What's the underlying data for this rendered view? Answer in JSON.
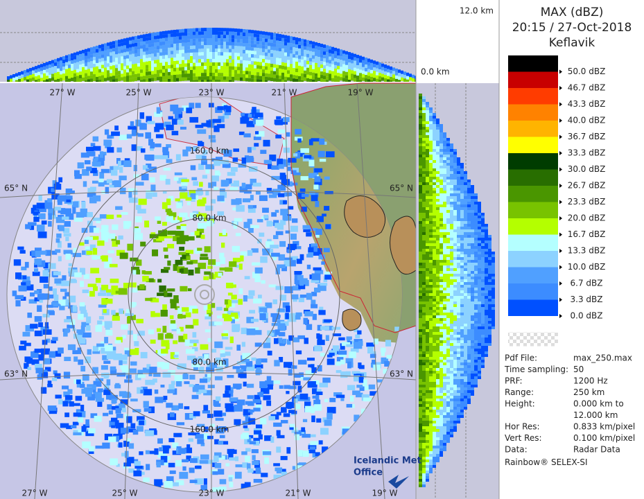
{
  "height_panel": {
    "top_label": "12.0 km",
    "bottom_label": "0.0 km"
  },
  "header": {
    "title": "MAX (dBZ)",
    "time": "20:15 / 27-Oct-2018",
    "site": "Keflavik"
  },
  "legend": {
    "items": [
      {
        "label": "50.0 dBZ",
        "color": "#000000"
      },
      {
        "label": "46.7 dBZ",
        "color": "#c80000"
      },
      {
        "label": "43.3 dBZ",
        "color": "#ff3c00"
      },
      {
        "label": "40.0 dBZ",
        "color": "#ff8200"
      },
      {
        "label": "36.7 dBZ",
        "color": "#ffb400"
      },
      {
        "label": "33.3 dBZ",
        "color": "#ffff00"
      },
      {
        "label": "30.0 dBZ",
        "color": "#003c00"
      },
      {
        "label": "26.7 dBZ",
        "color": "#286e00"
      },
      {
        "label": "23.3 dBZ",
        "color": "#4a9600"
      },
      {
        "label": "20.0 dBZ",
        "color": "#78c300"
      },
      {
        "label": "16.7 dBZ",
        "color": "#b4ff00"
      },
      {
        "label": "13.3 dBZ",
        "color": "#b4ffff"
      },
      {
        "label": "10.0 dBZ",
        "color": "#8cd2ff"
      },
      {
        "label": "6.7 dBZ",
        "color": "#50a0ff"
      },
      {
        "label": "3.3 dBZ",
        "color": "#3c8cff"
      },
      {
        "label": "0.0 dBZ",
        "color": "#0050ff"
      }
    ],
    "below_color": "#ffffff"
  },
  "info": {
    "rows": [
      {
        "label": "Pdf File:",
        "lines": [
          "max_250.max"
        ]
      },
      {
        "label": "Time sampling:",
        "lines": [
          "50"
        ]
      },
      {
        "label": "PRF:",
        "lines": [
          "1200 Hz"
        ]
      },
      {
        "label": "Range:",
        "lines": [
          "250 km"
        ]
      },
      {
        "label": "Height:",
        "lines": [
          "0.000 km to",
          "12.000 km"
        ]
      },
      {
        "label": "Hor Res:",
        "lines": [
          "0.833 km/pixel"
        ]
      },
      {
        "label": "Vert Res:",
        "lines": [
          "0.100 km/pixel"
        ]
      },
      {
        "label": "Data:",
        "lines": [
          "Radar Data"
        ]
      }
    ],
    "footer": "Rainbow® SELEX-SI"
  },
  "map": {
    "lon_top": [
      "27° W",
      "25° W",
      "23° W",
      "21° W",
      "19° W"
    ],
    "lon_bottom": [
      "27° W",
      "25° W",
      "23° W",
      "21° W",
      "19° W"
    ],
    "lat_left": [
      "65° N",
      "63° N"
    ],
    "lat_right": [
      "65° N",
      "63° N"
    ],
    "rings": [
      "80.0 km",
      "80.0 km",
      "160.0 km",
      "160.0 km"
    ],
    "logo": [
      "Icelandic Met",
      "Office"
    ]
  }
}
